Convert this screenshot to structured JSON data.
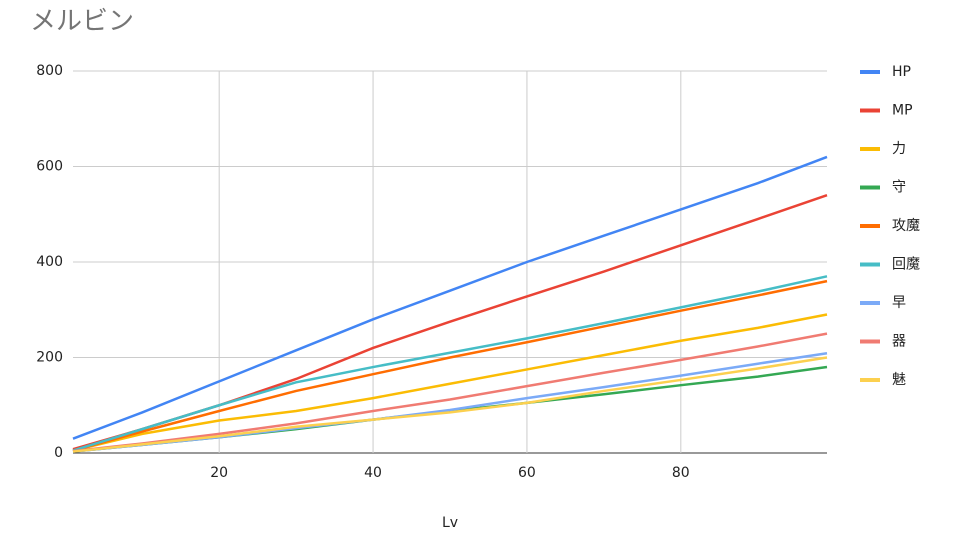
{
  "chart_data": {
    "type": "line",
    "title": "メルビン",
    "x_label": "Lv",
    "x": [
      1,
      10,
      20,
      30,
      40,
      50,
      60,
      70,
      80,
      90,
      99
    ],
    "series": [
      {
        "name": "HP",
        "color": "#4285f4",
        "values": [
          30,
          85,
          150,
          215,
          280,
          340,
          400,
          455,
          510,
          565,
          620
        ]
      },
      {
        "name": "MP",
        "color": "#ea4335",
        "values": [
          8,
          50,
          100,
          155,
          220,
          275,
          328,
          380,
          435,
          490,
          540
        ]
      },
      {
        "name": "力",
        "color": "#fbbc04",
        "values": [
          5,
          40,
          68,
          88,
          115,
          145,
          175,
          205,
          235,
          262,
          290
        ]
      },
      {
        "name": "守",
        "color": "#34a853",
        "values": [
          3,
          17,
          33,
          50,
          70,
          88,
          105,
          123,
          142,
          160,
          180
        ]
      },
      {
        "name": "攻魔",
        "color": "#ff6d01",
        "values": [
          5,
          45,
          88,
          130,
          165,
          200,
          232,
          265,
          298,
          330,
          360
        ]
      },
      {
        "name": "回魔",
        "color": "#46bdc6",
        "values": [
          5,
          50,
          100,
          148,
          180,
          210,
          240,
          272,
          305,
          338,
          370
        ]
      },
      {
        "name": "早",
        "color": "#7baaf7",
        "values": [
          3,
          17,
          33,
          52,
          70,
          90,
          115,
          138,
          162,
          187,
          209
        ]
      },
      {
        "name": "器",
        "color": "#f07b72",
        "values": [
          4,
          20,
          40,
          62,
          88,
          112,
          140,
          168,
          195,
          223,
          250
        ]
      },
      {
        "name": "魅",
        "color": "#fcd04f",
        "values": [
          3,
          18,
          35,
          55,
          70,
          85,
          105,
          130,
          153,
          177,
          200
        ]
      }
    ],
    "xlim": [
      1,
      99
    ],
    "xticks": [
      20,
      40,
      60,
      80
    ],
    "ylim": [
      0,
      800
    ],
    "yticks": [
      0,
      200,
      400,
      600,
      800
    ],
    "grid": true,
    "legend": "right"
  }
}
